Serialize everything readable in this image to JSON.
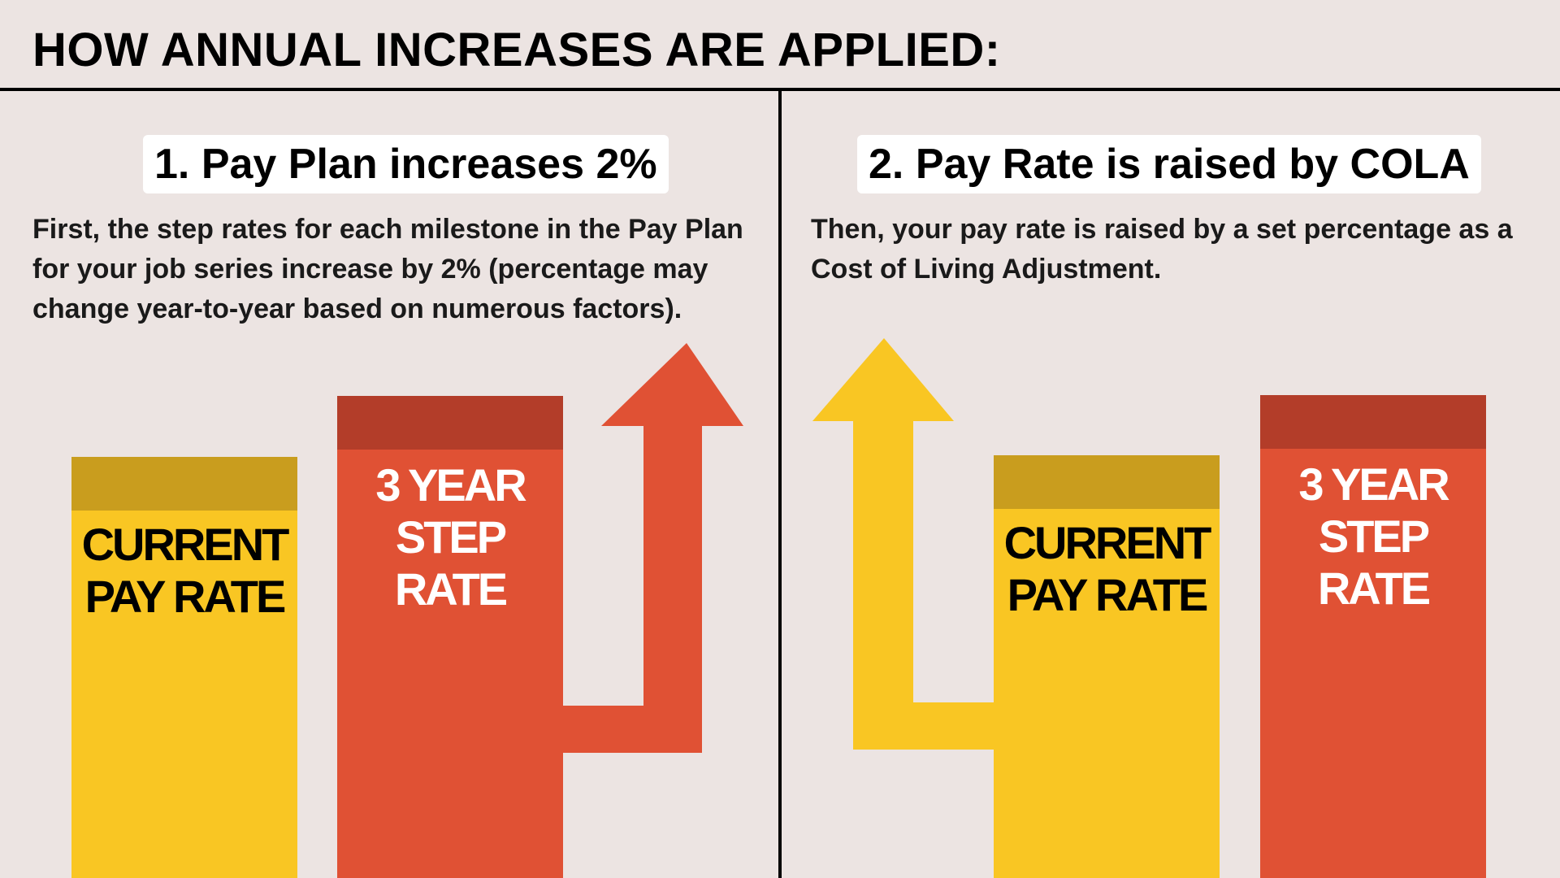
{
  "header": {
    "title": "HOW ANNUAL INCREASES ARE APPLIED:"
  },
  "steps": [
    {
      "heading": "1. Pay Plan increases 2%",
      "description": "First, the step rates for each milestone in the Pay Plan for your job series increase by 2% (percentage may change year-to-year based on numerous factors).",
      "bars": [
        {
          "label": "CURRENT\nPAY RATE",
          "color": "#f9c623",
          "cap_color": "#c99d1e"
        },
        {
          "label": "3 YEAR\nSTEP RATE",
          "color": "#e05134",
          "cap_color": "#b33d29"
        }
      ],
      "arrow_color": "#e05134"
    },
    {
      "heading": "2. Pay Rate is raised by COLA",
      "description": "Then, your pay rate is raised by a set percentage as a Cost of Living Adjustment.",
      "bars": [
        {
          "label": "CURRENT\nPAY RATE",
          "color": "#f9c623",
          "cap_color": "#c99d1e"
        },
        {
          "label": "3 YEAR\nSTEP RATE",
          "color": "#e05134",
          "cap_color": "#b33d29"
        }
      ],
      "arrow_color": "#f9c623"
    }
  ]
}
